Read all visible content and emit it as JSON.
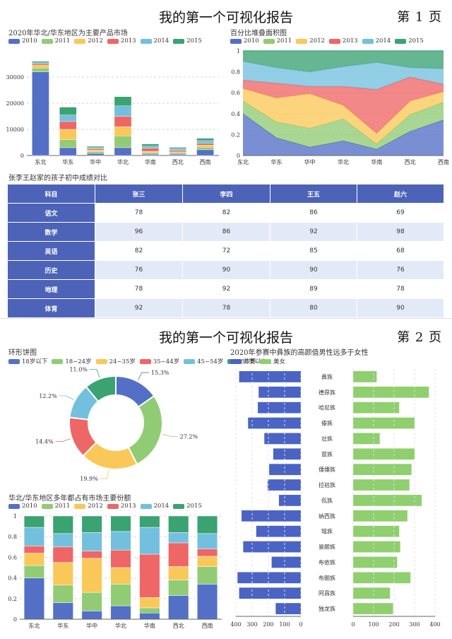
{
  "report": {
    "title": "我的第一个可视化报告",
    "page1_label": "第 1 页",
    "page2_label": "第 2 页"
  },
  "colors": {
    "2010": "#5470c6",
    "2011": "#91cc75",
    "2012": "#fac858",
    "2013": "#ee6666",
    "2014": "#73c0de",
    "2015": "#3ba272",
    "secondary_blue": "#4a63c4",
    "secondary_green": "#8fcf6e"
  },
  "chart_data": [
    {
      "id": "stacked-bar",
      "type": "bar",
      "stacked": true,
      "title": "2020年华北/华东地区为主要产品市场",
      "categories": [
        "东北",
        "华东",
        "华中",
        "华北",
        "华南",
        "西北",
        "西南"
      ],
      "series": [
        {
          "name": "2010",
          "values": [
            32000,
            3000,
            800,
            3000,
            500,
            500,
            2200
          ]
        },
        {
          "name": "2011",
          "values": [
            1500,
            3000,
            700,
            4500,
            600,
            500,
            1000
          ]
        },
        {
          "name": "2012",
          "values": [
            1000,
            4000,
            600,
            3500,
            500,
            400,
            800
          ]
        },
        {
          "name": "2013",
          "values": [
            600,
            3000,
            500,
            4000,
            1200,
            600,
            700
          ]
        },
        {
          "name": "2014",
          "values": [
            400,
            2500,
            400,
            4000,
            800,
            600,
            1000
          ]
        },
        {
          "name": "2015",
          "values": [
            500,
            3000,
            500,
            3500,
            800,
            500,
            900
          ]
        }
      ],
      "yticks": [
        0,
        10000,
        20000,
        30000
      ],
      "ylim": [
        0,
        40000
      ],
      "legend": "top-left"
    },
    {
      "id": "percent-area",
      "type": "area",
      "stacked": "percent",
      "title": "百分比堆叠面积图",
      "categories": [
        "东北",
        "华东",
        "华中",
        "华北",
        "华南",
        "西北",
        "西南"
      ],
      "series": [
        {
          "name": "2010",
          "values": [
            0.4,
            0.17,
            0.08,
            0.14,
            0.06,
            0.23,
            0.34
          ]
        },
        {
          "name": "2011",
          "values": [
            0.12,
            0.15,
            0.18,
            0.21,
            0.05,
            0.16,
            0.17
          ]
        },
        {
          "name": "2012",
          "values": [
            0.12,
            0.23,
            0.33,
            0.13,
            0.1,
            0.13,
            0.1
          ]
        },
        {
          "name": "2013",
          "values": [
            0.08,
            0.14,
            0.07,
            0.18,
            0.42,
            0.23,
            0.07
          ]
        },
        {
          "name": "2014",
          "values": [
            0.18,
            0.15,
            0.14,
            0.19,
            0.26,
            0.09,
            0.15
          ]
        },
        {
          "name": "2015",
          "values": [
            0.1,
            0.16,
            0.2,
            0.15,
            0.11,
            0.16,
            0.17
          ]
        }
      ],
      "yticks": [
        0,
        0.2,
        0.4,
        0.6,
        0.8,
        1
      ],
      "ylim": [
        0,
        1
      ],
      "legend": "top-left"
    },
    {
      "id": "score-table",
      "type": "table",
      "title": "张李王赵家的孩子初中成绩对比",
      "columns": [
        "科目",
        "张三",
        "李四",
        "王五",
        "赵六"
      ],
      "rows": [
        [
          "语文",
          "78",
          "82",
          "86",
          "69"
        ],
        [
          "数学",
          "96",
          "86",
          "92",
          "98"
        ],
        [
          "英语",
          "82",
          "72",
          "85",
          "68"
        ],
        [
          "历史",
          "76",
          "90",
          "90",
          "76"
        ],
        [
          "地理",
          "78",
          "92",
          "89",
          "78"
        ],
        [
          "体育",
          "92",
          "78",
          "80",
          "90"
        ]
      ]
    },
    {
      "id": "donut",
      "type": "pie",
      "donut": true,
      "title": "环形饼图",
      "labels": [
        "18岁以下",
        "18~24岁",
        "24~35岁",
        "35~44岁",
        "45~54岁",
        "55岁以上"
      ],
      "values": [
        15.3,
        27.2,
        19.9,
        14.4,
        12.2,
        11.0
      ],
      "value_labels": [
        "15.3%",
        "27.2%",
        "19.9%",
        "14.4%",
        "12.2%",
        "11.0%"
      ],
      "legend": "top-left"
    },
    {
      "id": "percent-bar",
      "type": "bar",
      "stacked": "percent",
      "title": "华北/华东地区多年都占有市场主要份额",
      "categories": [
        "东北",
        "华东",
        "华中",
        "华北",
        "华南",
        "西北",
        "西南"
      ],
      "series": [
        {
          "name": "2010",
          "values": [
            0.4,
            0.16,
            0.08,
            0.13,
            0.06,
            0.23,
            0.34
          ]
        },
        {
          "name": "2011",
          "values": [
            0.12,
            0.17,
            0.18,
            0.21,
            0.05,
            0.15,
            0.17
          ]
        },
        {
          "name": "2012",
          "values": [
            0.12,
            0.22,
            0.33,
            0.16,
            0.1,
            0.13,
            0.1
          ]
        },
        {
          "name": "2013",
          "values": [
            0.07,
            0.15,
            0.07,
            0.17,
            0.42,
            0.23,
            0.07
          ]
        },
        {
          "name": "2014",
          "values": [
            0.18,
            0.13,
            0.18,
            0.18,
            0.26,
            0.1,
            0.15
          ]
        },
        {
          "name": "2015",
          "values": [
            0.11,
            0.17,
            0.16,
            0.15,
            0.11,
            0.16,
            0.17
          ]
        }
      ],
      "yticks": [
        0,
        0.2,
        0.4,
        0.6,
        0.8,
        1
      ],
      "ylim": [
        0,
        1
      ],
      "legend": "top-left"
    },
    {
      "id": "butterfly",
      "type": "bar",
      "orientation": "horizontal",
      "title": "2020年参赛中彝族的高颜值男性远多于女性",
      "categories": [
        "彝族",
        "德昂族",
        "哈尼族",
        "傣族",
        "壮族",
        "苗族",
        "傈僳族",
        "拉祜族",
        "佤族",
        "纳西族",
        "瑶族",
        "景颇族",
        "布依族",
        "布朗族",
        "阿昌族",
        "独龙族"
      ],
      "series": [
        {
          "name": "帅哥",
          "values": [
            380,
            260,
            265,
            325,
            225,
            170,
            195,
            205,
            135,
            365,
            275,
            355,
            180,
            390,
            380,
            155
          ]
        },
        {
          "name": "美女",
          "values": [
            115,
            370,
            225,
            300,
            130,
            300,
            285,
            275,
            335,
            265,
            225,
            230,
            215,
            280,
            180,
            195
          ]
        }
      ],
      "left_ticks": [
        400,
        300,
        200,
        100,
        0
      ],
      "right_ticks": [
        0,
        100,
        200,
        300,
        400
      ],
      "xlim": [
        0,
        400
      ],
      "legend": "top-left"
    }
  ]
}
